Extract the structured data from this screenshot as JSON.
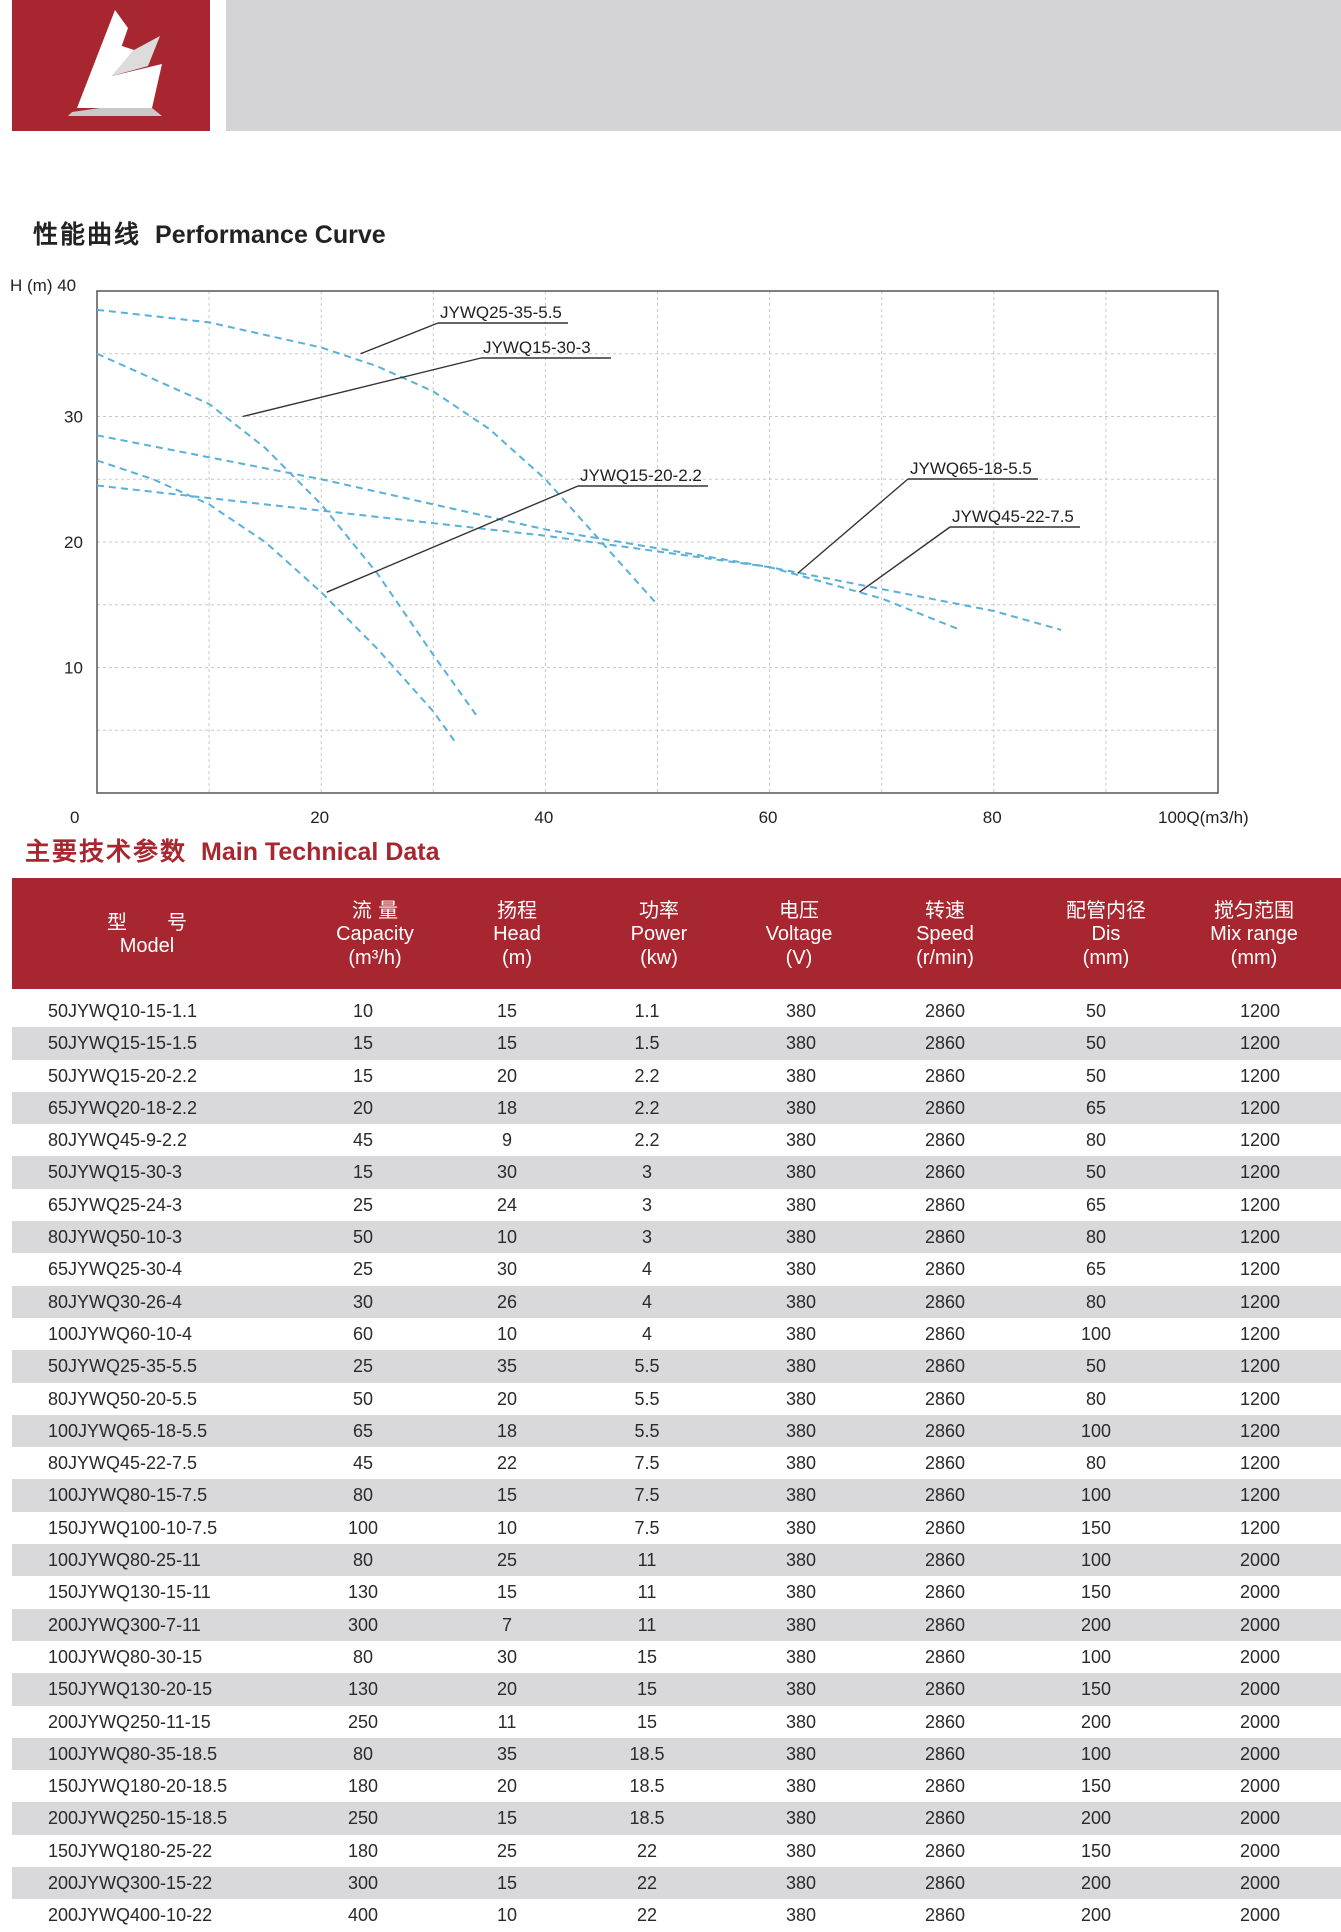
{
  "performance_section": {
    "title_cn": "性能曲线",
    "title_en": "Performance Curve"
  },
  "technical_section": {
    "title_cn": "主要技术参数",
    "title_en": "Main Technical Data"
  },
  "chart_data": {
    "type": "line",
    "title": "",
    "ylabel": "H (m)",
    "xlabel": "Q(m3/h)",
    "xlim": [
      0,
      100
    ],
    "ylim": [
      0,
      40
    ],
    "x_ticks": [
      {
        "value": 0,
        "label": "0"
      },
      {
        "value": 20,
        "label": "20"
      },
      {
        "value": 40,
        "label": "40"
      },
      {
        "value": 60,
        "label": "60"
      },
      {
        "value": 80,
        "label": "80"
      },
      {
        "value": 100,
        "label": "100Q(m3/h)"
      }
    ],
    "y_ticks": [
      {
        "value": 10,
        "label": "10"
      },
      {
        "value": 20,
        "label": "20"
      },
      {
        "value": 30,
        "label": "30"
      },
      {
        "value": 40,
        "label": "H (m) 40"
      }
    ],
    "grid": true,
    "series": [
      {
        "name": "JYWQ25-35-5.5",
        "x": [
          0,
          10,
          20,
          25,
          30,
          35,
          40,
          45,
          50
        ],
        "y": [
          38.5,
          37.5,
          35.5,
          34,
          32,
          29,
          25,
          20,
          15
        ]
      },
      {
        "name": "JYWQ15-30-3",
        "x": [
          0,
          10,
          15,
          20,
          25,
          30,
          34
        ],
        "y": [
          35,
          31,
          27.5,
          23,
          17.5,
          11,
          6
        ]
      },
      {
        "name": "JYWQ15-20-2.2",
        "x": [
          0,
          5,
          10,
          15,
          20,
          25,
          30,
          32
        ],
        "y": [
          26.5,
          25,
          23,
          20,
          16,
          11.5,
          6.5,
          4
        ]
      },
      {
        "name": "JYWQ65-18-5.5",
        "x": [
          0,
          20,
          40,
          60,
          70,
          77
        ],
        "y": [
          28.5,
          25,
          21,
          18,
          15.5,
          13
        ]
      },
      {
        "name": "JYWQ45-22-7.5",
        "x": [
          0,
          20,
          40,
          60,
          80,
          86
        ],
        "y": [
          24.5,
          22.5,
          20.5,
          18,
          14.5,
          13
        ]
      }
    ],
    "annotations": [
      {
        "text": "JYWQ25-35-5.5",
        "target_x": 23.5,
        "target_y": 35
      },
      {
        "text": "JYWQ15-30-3",
        "target_x": 13,
        "target_y": 30
      },
      {
        "text": "JYWQ15-20-2.2",
        "target_x": 20.5,
        "target_y": 16
      },
      {
        "text": "JYWQ65-18-5.5",
        "target_x": 62.5,
        "target_y": 17.5
      },
      {
        "text": "JYWQ45-22-7.5",
        "target_x": 68,
        "target_y": 16
      }
    ]
  },
  "table": {
    "headers": [
      {
        "cn": "型　　号",
        "en": "Model",
        "unit": ""
      },
      {
        "cn": "流 量",
        "en": "Capacity",
        "unit": "(m³/h)"
      },
      {
        "cn": "扬程",
        "en": "Head",
        "unit": "(m)"
      },
      {
        "cn": "功率",
        "en": "Power",
        "unit": "(kw)"
      },
      {
        "cn": "电压",
        "en": "Voltage",
        "unit": "(V)"
      },
      {
        "cn": "转速",
        "en": "Speed",
        "unit": "(r/min)"
      },
      {
        "cn": "配管内径",
        "en": "Dis",
        "unit": "(mm)"
      },
      {
        "cn": "搅匀范围",
        "en": "Mix range",
        "unit": "(mm)"
      }
    ],
    "rows": [
      [
        "50JYWQ10-15-1.1",
        "10",
        "15",
        "1.1",
        "380",
        "2860",
        "50",
        "1200"
      ],
      [
        "50JYWQ15-15-1.5",
        "15",
        "15",
        "1.5",
        "380",
        "2860",
        "50",
        "1200"
      ],
      [
        "50JYWQ15-20-2.2",
        "15",
        "20",
        "2.2",
        "380",
        "2860",
        "50",
        "1200"
      ],
      [
        "65JYWQ20-18-2.2",
        "20",
        "18",
        "2.2",
        "380",
        "2860",
        "65",
        "1200"
      ],
      [
        "80JYWQ45-9-2.2",
        "45",
        "9",
        "2.2",
        "380",
        "2860",
        "80",
        "1200"
      ],
      [
        "50JYWQ15-30-3",
        "15",
        "30",
        "3",
        "380",
        "2860",
        "50",
        "1200"
      ],
      [
        "65JYWQ25-24-3",
        "25",
        "24",
        "3",
        "380",
        "2860",
        "65",
        "1200"
      ],
      [
        "80JYWQ50-10-3",
        "50",
        "10",
        "3",
        "380",
        "2860",
        "80",
        "1200"
      ],
      [
        "65JYWQ25-30-4",
        "25",
        "30",
        "4",
        "380",
        "2860",
        "65",
        "1200"
      ],
      [
        "80JYWQ30-26-4",
        "30",
        "26",
        "4",
        "380",
        "2860",
        "80",
        "1200"
      ],
      [
        "100JYWQ60-10-4",
        "60",
        "10",
        "4",
        "380",
        "2860",
        "100",
        "1200"
      ],
      [
        "50JYWQ25-35-5.5",
        "25",
        "35",
        "5.5",
        "380",
        "2860",
        "50",
        "1200"
      ],
      [
        "80JYWQ50-20-5.5",
        "50",
        "20",
        "5.5",
        "380",
        "2860",
        "80",
        "1200"
      ],
      [
        "100JYWQ65-18-5.5",
        "65",
        "18",
        "5.5",
        "380",
        "2860",
        "100",
        "1200"
      ],
      [
        "80JYWQ45-22-7.5",
        "45",
        "22",
        "7.5",
        "380",
        "2860",
        "80",
        "1200"
      ],
      [
        "100JYWQ80-15-7.5",
        "80",
        "15",
        "7.5",
        "380",
        "2860",
        "100",
        "1200"
      ],
      [
        "150JYWQ100-10-7.5",
        "100",
        "10",
        "7.5",
        "380",
        "2860",
        "150",
        "1200"
      ],
      [
        "100JYWQ80-25-11",
        "80",
        "25",
        "11",
        "380",
        "2860",
        "100",
        "2000"
      ],
      [
        "150JYWQ130-15-11",
        "130",
        "15",
        "11",
        "380",
        "2860",
        "150",
        "2000"
      ],
      [
        "200JYWQ300-7-11",
        "300",
        "7",
        "11",
        "380",
        "2860",
        "200",
        "2000"
      ],
      [
        "100JYWQ80-30-15",
        "80",
        "30",
        "15",
        "380",
        "2860",
        "100",
        "2000"
      ],
      [
        "150JYWQ130-20-15",
        "130",
        "20",
        "15",
        "380",
        "2860",
        "150",
        "2000"
      ],
      [
        "200JYWQ250-11-15",
        "250",
        "11",
        "15",
        "380",
        "2860",
        "200",
        "2000"
      ],
      [
        "100JYWQ80-35-18.5",
        "80",
        "35",
        "18.5",
        "380",
        "2860",
        "100",
        "2000"
      ],
      [
        "150JYWQ180-20-18.5",
        "180",
        "20",
        "18.5",
        "380",
        "2860",
        "150",
        "2000"
      ],
      [
        "200JYWQ250-15-18.5",
        "250",
        "15",
        "18.5",
        "380",
        "2860",
        "200",
        "2000"
      ],
      [
        "150JYWQ180-25-22",
        "180",
        "25",
        "22",
        "380",
        "2860",
        "150",
        "2000"
      ],
      [
        "200JYWQ300-15-22",
        "300",
        "15",
        "22",
        "380",
        "2860",
        "200",
        "2000"
      ],
      [
        "200JYWQ400-10-22",
        "400",
        "10",
        "22",
        "380",
        "2860",
        "200",
        "2000"
      ]
    ]
  },
  "colors": {
    "brand_red": "#a8262f",
    "band_gray": "#d4d4d6",
    "curve": "#5ab0d8",
    "row_alt": "#d9d9db"
  }
}
